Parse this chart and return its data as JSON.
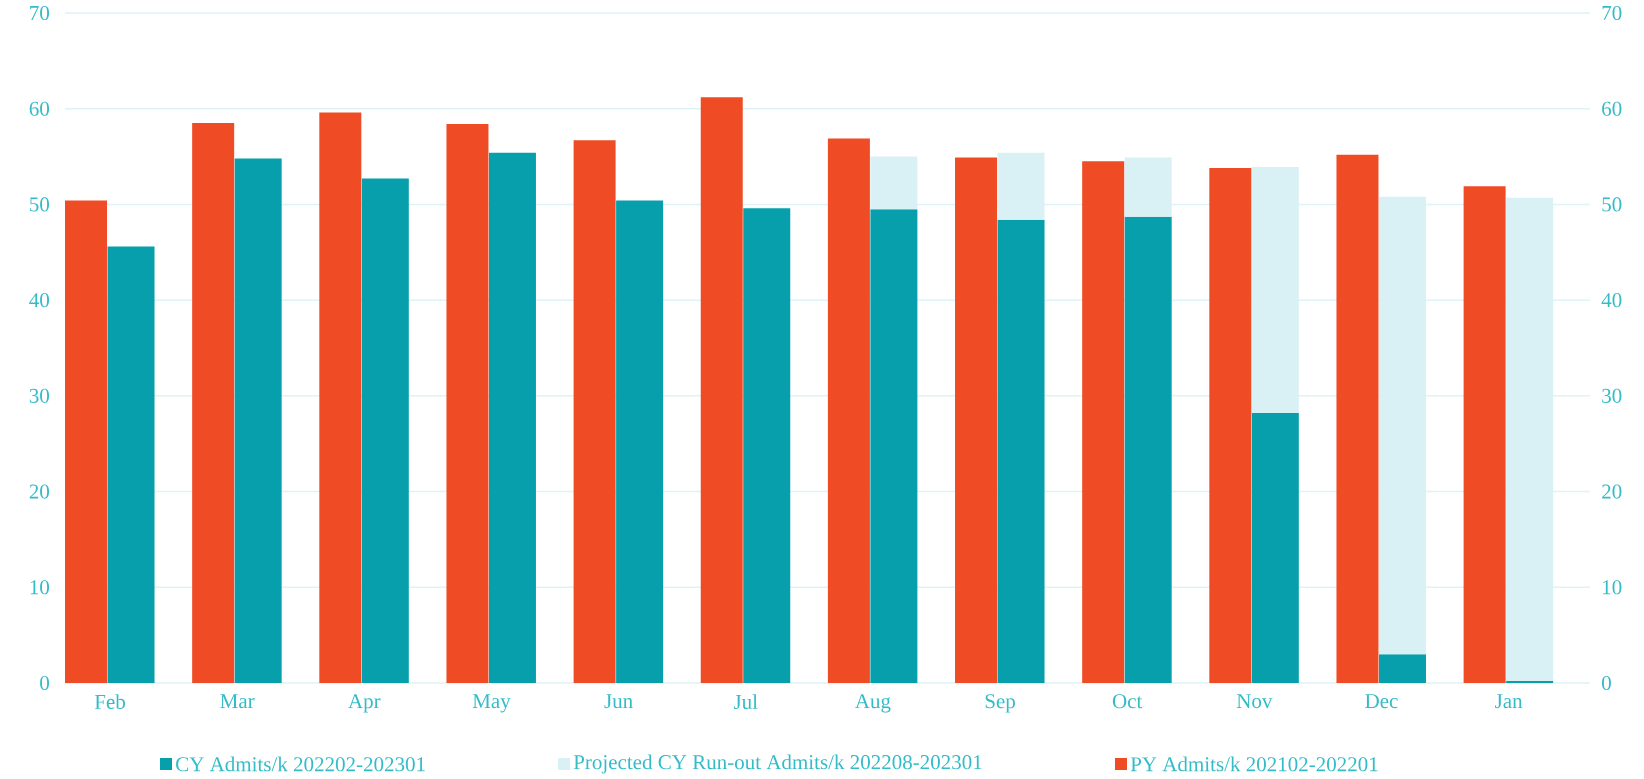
{
  "chart_data": {
    "type": "bar",
    "categories": [
      "Feb",
      "Mar",
      "Apr",
      "May",
      "Jun",
      "Jul",
      "Aug",
      "Sep",
      "Oct",
      "Nov",
      "Dec",
      "Jan"
    ],
    "series": [
      {
        "name": "CY Admits/k 202202-202301",
        "color": "#079fab",
        "values": [
          45.6,
          54.8,
          52.7,
          55.4,
          50.4,
          49.6,
          49.5,
          48.4,
          48.7,
          28.2,
          3.0,
          0.2
        ]
      },
      {
        "name": "Projected CY Run-out Admits/k 202208-202301",
        "color": "#d9f1f5",
        "base": [
          null,
          null,
          null,
          null,
          null,
          null,
          49.5,
          48.4,
          48.7,
          28.2,
          3.0,
          0.2
        ],
        "values": [
          null,
          null,
          null,
          null,
          null,
          null,
          5.5,
          7.0,
          6.2,
          25.7,
          47.8,
          50.5
        ]
      },
      {
        "name": "PY Admits/k 202102-202201",
        "color": "#ef4b24",
        "values": [
          50.4,
          58.5,
          59.6,
          58.4,
          56.7,
          61.2,
          56.9,
          54.9,
          54.5,
          53.8,
          55.2,
          51.9
        ]
      }
    ],
    "ylim": [
      0,
      70
    ],
    "yticks": [
      0,
      10,
      20,
      30,
      40,
      50,
      60,
      70
    ],
    "y2lim": [
      0,
      70
    ],
    "y2ticks": [
      0,
      10,
      20,
      30,
      40,
      50,
      60,
      70
    ],
    "grid": "y",
    "legend": "bottom"
  }
}
